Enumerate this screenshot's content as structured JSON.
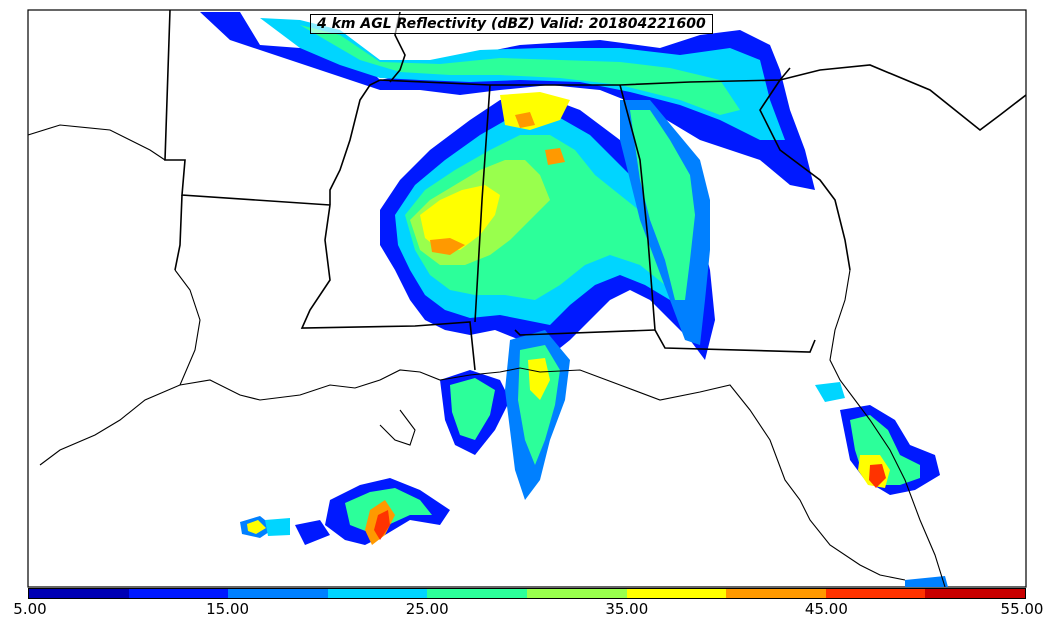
{
  "title": "4 km AGL Reflectivity (dBZ) Valid: 201804221600",
  "colorbar": {
    "colors": [
      "#0000b4",
      "#0019ff",
      "#0080ff",
      "#00d5ff",
      "#2cff9a",
      "#99ff4d",
      "#ffff00",
      "#ff9900",
      "#ff3300",
      "#c80000"
    ],
    "tick_labels": [
      "5.00",
      "15.00",
      "25.00",
      "35.00",
      "45.00",
      "55.00"
    ],
    "min": 5,
    "max": 55
  },
  "legend_title": ""
}
